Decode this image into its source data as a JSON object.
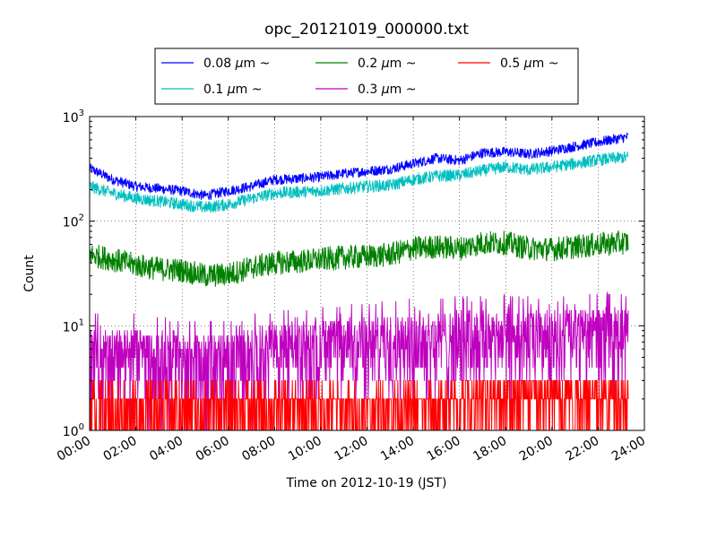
{
  "chart_data": {
    "type": "line",
    "title": "opc_20121019_000000.txt",
    "xlabel": "Time on 2012-10-19 (JST)",
    "ylabel": "Count",
    "y_scale": "log",
    "ylim": [
      1,
      1000
    ],
    "xlim": [
      "00:00",
      "24:00"
    ],
    "grid": true,
    "legend_position": "top-center, above plot",
    "x_tick_labels": [
      "00:00",
      "02:00",
      "04:00",
      "06:00",
      "08:00",
      "10:00",
      "12:00",
      "14:00",
      "16:00",
      "18:00",
      "20:00",
      "22:00",
      "24:00"
    ],
    "y_tick_labels": [
      {
        "value": 1,
        "base": "10",
        "exp": "0"
      },
      {
        "value": 10,
        "base": "10",
        "exp": "1"
      },
      {
        "value": 100,
        "base": "10",
        "exp": "2"
      },
      {
        "value": 1000,
        "base": "10",
        "exp": "3"
      }
    ],
    "series": [
      {
        "name": "0.08 μm ~",
        "name_parts": [
          "0.08 ",
          "μ",
          "m ~"
        ],
        "color": "#0000ff",
        "x_hours": [
          0,
          1,
          2,
          3,
          4,
          5,
          6,
          7,
          8,
          9,
          10,
          11,
          12,
          13,
          14,
          15,
          16,
          17,
          18,
          19,
          20,
          21,
          22,
          23.3
        ],
        "values": [
          320,
          250,
          215,
          205,
          195,
          175,
          195,
          215,
          250,
          255,
          265,
          285,
          300,
          315,
          355,
          400,
          380,
          450,
          460,
          440,
          470,
          520,
          570,
          640
        ],
        "noise": 0.05
      },
      {
        "name": "0.1 μm ~",
        "name_parts": [
          "0.1 ",
          "μ",
          "m ~"
        ],
        "color": "#00bfbf",
        "x_hours": [
          0,
          1,
          2,
          3,
          4,
          5,
          6,
          7,
          8,
          9,
          10,
          11,
          12,
          13,
          14,
          15,
          16,
          17,
          18,
          19,
          20,
          21,
          22,
          23.3
        ],
        "values": [
          215,
          185,
          165,
          155,
          145,
          135,
          145,
          165,
          185,
          190,
          195,
          205,
          215,
          220,
          250,
          270,
          275,
          305,
          330,
          310,
          330,
          355,
          385,
          410
        ],
        "noise": 0.06
      },
      {
        "name": "0.2 μm ~",
        "name_parts": [
          "0.2 ",
          "μ",
          "m ~"
        ],
        "color": "#008000",
        "x_hours": [
          0,
          1,
          2,
          3,
          4,
          5,
          6,
          7,
          8,
          9,
          10,
          11,
          12,
          13,
          14,
          15,
          16,
          17,
          18,
          19,
          20,
          21,
          22,
          23.3
        ],
        "values": [
          48,
          43,
          38,
          35,
          34,
          30,
          31,
          36,
          40,
          41,
          43,
          45,
          46,
          48,
          55,
          57,
          55,
          62,
          62,
          55,
          54,
          57,
          60,
          63
        ],
        "noise": 0.12
      },
      {
        "name": "0.3 μm ~",
        "name_parts": [
          "0.3 ",
          "μ",
          "m ~"
        ],
        "color": "#bf00bf",
        "x_hours": [
          0,
          2,
          4,
          6,
          8,
          10,
          12,
          14,
          16,
          18,
          20,
          22,
          23.3
        ],
        "values": [
          5,
          5,
          4.5,
          4.5,
          5.5,
          6,
          6.5,
          7,
          7.5,
          7.5,
          7.5,
          8,
          8
        ],
        "noise": 0.5
      },
      {
        "name": "0.5 μm ~",
        "name_parts": [
          "0.5 ",
          "μ",
          "m ~"
        ],
        "color": "#ff0000",
        "x_hours": [
          0,
          23.3
        ],
        "values": [
          1,
          1
        ],
        "discrete_levels": [
          1,
          2,
          3
        ],
        "noise": 0
      }
    ]
  }
}
